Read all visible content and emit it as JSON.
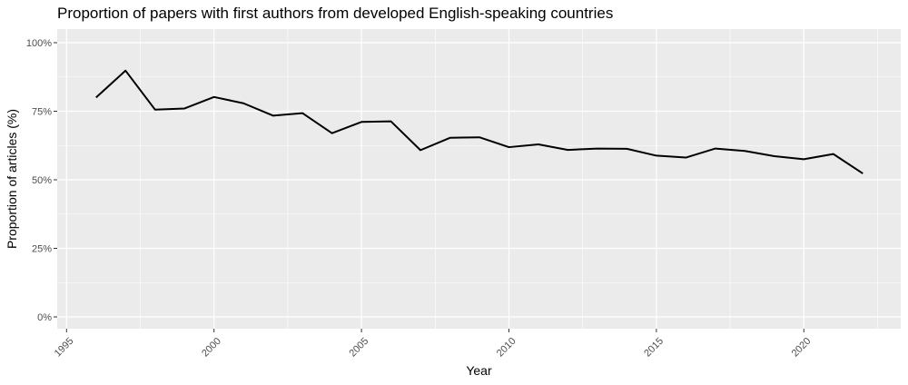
{
  "chart_data": {
    "type": "line",
    "title": "Proportion of papers with first authors from developed English-speaking countries",
    "xlabel": "Year",
    "ylabel": "Proportion of articles (%)",
    "xlim": [
      1995,
      2022
    ],
    "ylim": [
      0,
      100
    ],
    "x_ticks": [
      1995,
      2000,
      2005,
      2010,
      2015,
      2020
    ],
    "x_tick_labels": [
      "1995",
      "2000",
      "2005",
      "2010",
      "2015",
      "2020"
    ],
    "y_ticks": [
      0,
      25,
      50,
      75,
      100
    ],
    "y_tick_labels": [
      "0%",
      "25%",
      "50%",
      "75%",
      "100%"
    ],
    "grid": true,
    "legend": "none",
    "series": [
      {
        "x": [
          1996,
          1997,
          1998,
          1999,
          2000,
          2001,
          2002,
          2003,
          2004,
          2005,
          2006,
          2007,
          2008,
          2009,
          2010,
          2011,
          2012,
          2013,
          2014,
          2015,
          2016,
          2017,
          2018,
          2019,
          2020,
          2021,
          2022
        ],
        "values": [
          80.0,
          89.8,
          75.6,
          76.0,
          80.2,
          77.9,
          73.4,
          74.3,
          67.0,
          71.1,
          71.3,
          60.8,
          65.3,
          65.5,
          61.9,
          62.9,
          60.9,
          61.4,
          61.3,
          58.8,
          58.1,
          61.4,
          60.5,
          58.6,
          57.5,
          59.4,
          52.3
        ],
        "color": "#000000"
      }
    ]
  },
  "colors": {
    "panel_background": "#ebebeb",
    "grid_major": "#ffffff",
    "tick_mark": "#333333",
    "line": "#000000"
  }
}
